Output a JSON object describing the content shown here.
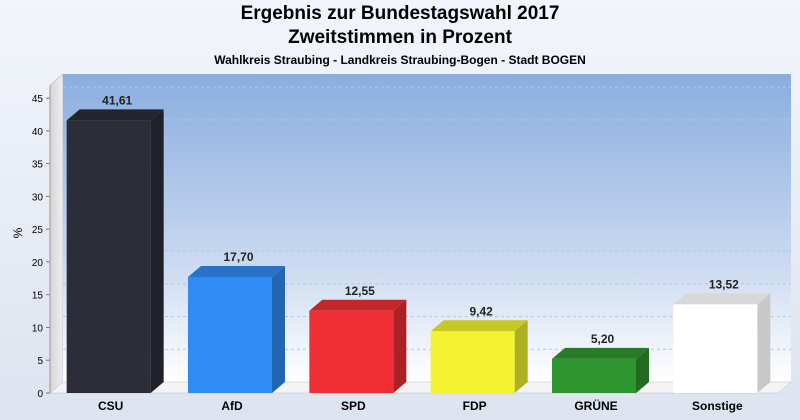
{
  "chart_data": {
    "type": "bar",
    "title": "Ergebnis zur Bundestagswahl 2017",
    "subtitle": "Zweitstimmen in Prozent",
    "caption": "Wahlkreis Straubing - Landkreis Straubing-Bogen - Stadt BOGEN",
    "ylabel": "%",
    "ylim": [
      0,
      47
    ],
    "yticks": [
      "0",
      "5",
      "10",
      "15",
      "20",
      "25",
      "30",
      "35",
      "40",
      "45"
    ],
    "grid": true,
    "categories": [
      "CSU",
      "AfD",
      "SPD",
      "FDP",
      "GRÜNE",
      "Sonstige"
    ],
    "values": [
      41.61,
      17.7,
      12.55,
      9.42,
      5.2,
      13.52
    ],
    "value_labels": [
      "41,61",
      "17,70",
      "12,55",
      "9,42",
      "5,20",
      "13,52"
    ],
    "colors": [
      "#2b2d38",
      "#2f8cf5",
      "#ee2f33",
      "#f3f330",
      "#2e962e",
      "#ffffff"
    ]
  }
}
